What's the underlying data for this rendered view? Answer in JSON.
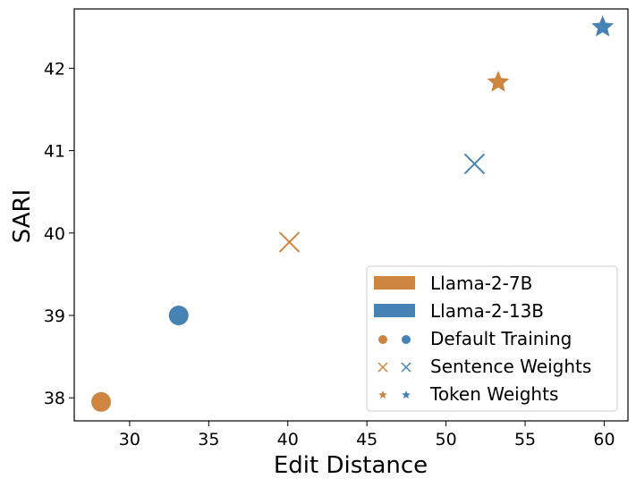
{
  "chart_data": {
    "type": "scatter",
    "xlabel": "Edit Distance",
    "ylabel": "SARI",
    "xlim": [
      26.5,
      61.5
    ],
    "ylim": [
      37.72,
      42.72
    ],
    "xticks": [
      "30",
      "35",
      "40",
      "45",
      "50",
      "55",
      "60"
    ],
    "yticks": [
      "38",
      "39",
      "40",
      "41",
      "42"
    ],
    "grid": false,
    "legend_position": "lower-right",
    "colors": {
      "llama7b": "#CD853F",
      "llama13b": "#4682B4"
    },
    "legend": [
      {
        "label": "Llama-2-7B",
        "kind": "patch",
        "color_key": "llama7b"
      },
      {
        "label": "Llama-2-13B",
        "kind": "patch",
        "color_key": "llama13b"
      },
      {
        "label": "Default Training",
        "kind": "marker-pair",
        "marker": "circle"
      },
      {
        "label": "Sentence Weights",
        "kind": "marker-pair",
        "marker": "x"
      },
      {
        "label": "Token Weights",
        "kind": "marker-pair",
        "marker": "star"
      }
    ],
    "points": [
      {
        "model": "Llama-2-7B",
        "method": "Default Training",
        "marker": "circle",
        "color_key": "llama7b",
        "x": 28.2,
        "y": 37.95
      },
      {
        "model": "Llama-2-13B",
        "method": "Default Training",
        "marker": "circle",
        "color_key": "llama13b",
        "x": 33.1,
        "y": 39.0
      },
      {
        "model": "Llama-2-7B",
        "method": "Sentence Weights",
        "marker": "x",
        "color_key": "llama7b",
        "x": 40.1,
        "y": 39.89
      },
      {
        "model": "Llama-2-13B",
        "method": "Sentence Weights",
        "marker": "x",
        "color_key": "llama13b",
        "x": 51.8,
        "y": 40.84
      },
      {
        "model": "Llama-2-7B",
        "method": "Token Weights",
        "marker": "star",
        "color_key": "llama7b",
        "x": 53.3,
        "y": 41.83
      },
      {
        "model": "Llama-2-13B",
        "method": "Token Weights",
        "marker": "star",
        "color_key": "llama13b",
        "x": 59.9,
        "y": 42.5
      }
    ]
  }
}
